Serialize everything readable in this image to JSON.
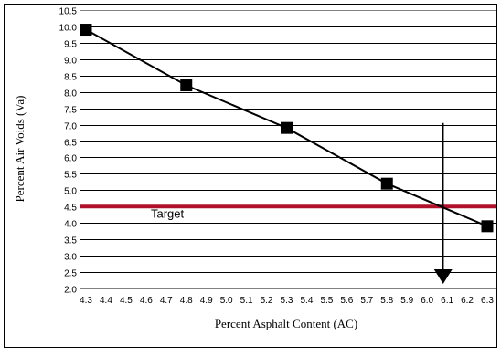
{
  "chart_data": {
    "type": "line",
    "title": "",
    "xlabel": "Percent Asphalt Content (AC)",
    "ylabel": "Percent Air Voids (Va)",
    "xlim": [
      4.3,
      6.3
    ],
    "ylim": [
      2.0,
      10.5
    ],
    "x_ticks": [
      "4.3",
      "4.4",
      "4.5",
      "4.6",
      "4.7",
      "4.8",
      "4.9",
      "5.0",
      "5.1",
      "5.2",
      "5.3",
      "5.4",
      "5.5",
      "5.6",
      "5.7",
      "5.8",
      "5.9",
      "6.0",
      "6.1",
      "6.2",
      "6.3"
    ],
    "y_ticks": [
      "2.0",
      "2.5",
      "3.0",
      "3.5",
      "4.0",
      "4.5",
      "5.0",
      "5.5",
      "6.0",
      "6.5",
      "7.0",
      "7.5",
      "8.0",
      "8.5",
      "9.0",
      "9.5",
      "10.0",
      "10.5"
    ],
    "grid": "horizontal",
    "series": [
      {
        "values": [
          {
            "x": 4.3,
            "y": 9.9
          },
          {
            "x": 4.8,
            "y": 8.2
          },
          {
            "x": 5.3,
            "y": 6.9
          },
          {
            "x": 5.8,
            "y": 5.2
          },
          {
            "x": 6.3,
            "y": 3.9
          }
        ],
        "color": "#000000",
        "marker": "square"
      }
    ],
    "target": {
      "label": "Target",
      "y": 4.5,
      "color": "#b0102a"
    },
    "arrow": {
      "x": 6.08,
      "y_from": 7.05,
      "y_to": 2.0,
      "color": "#000000"
    }
  }
}
